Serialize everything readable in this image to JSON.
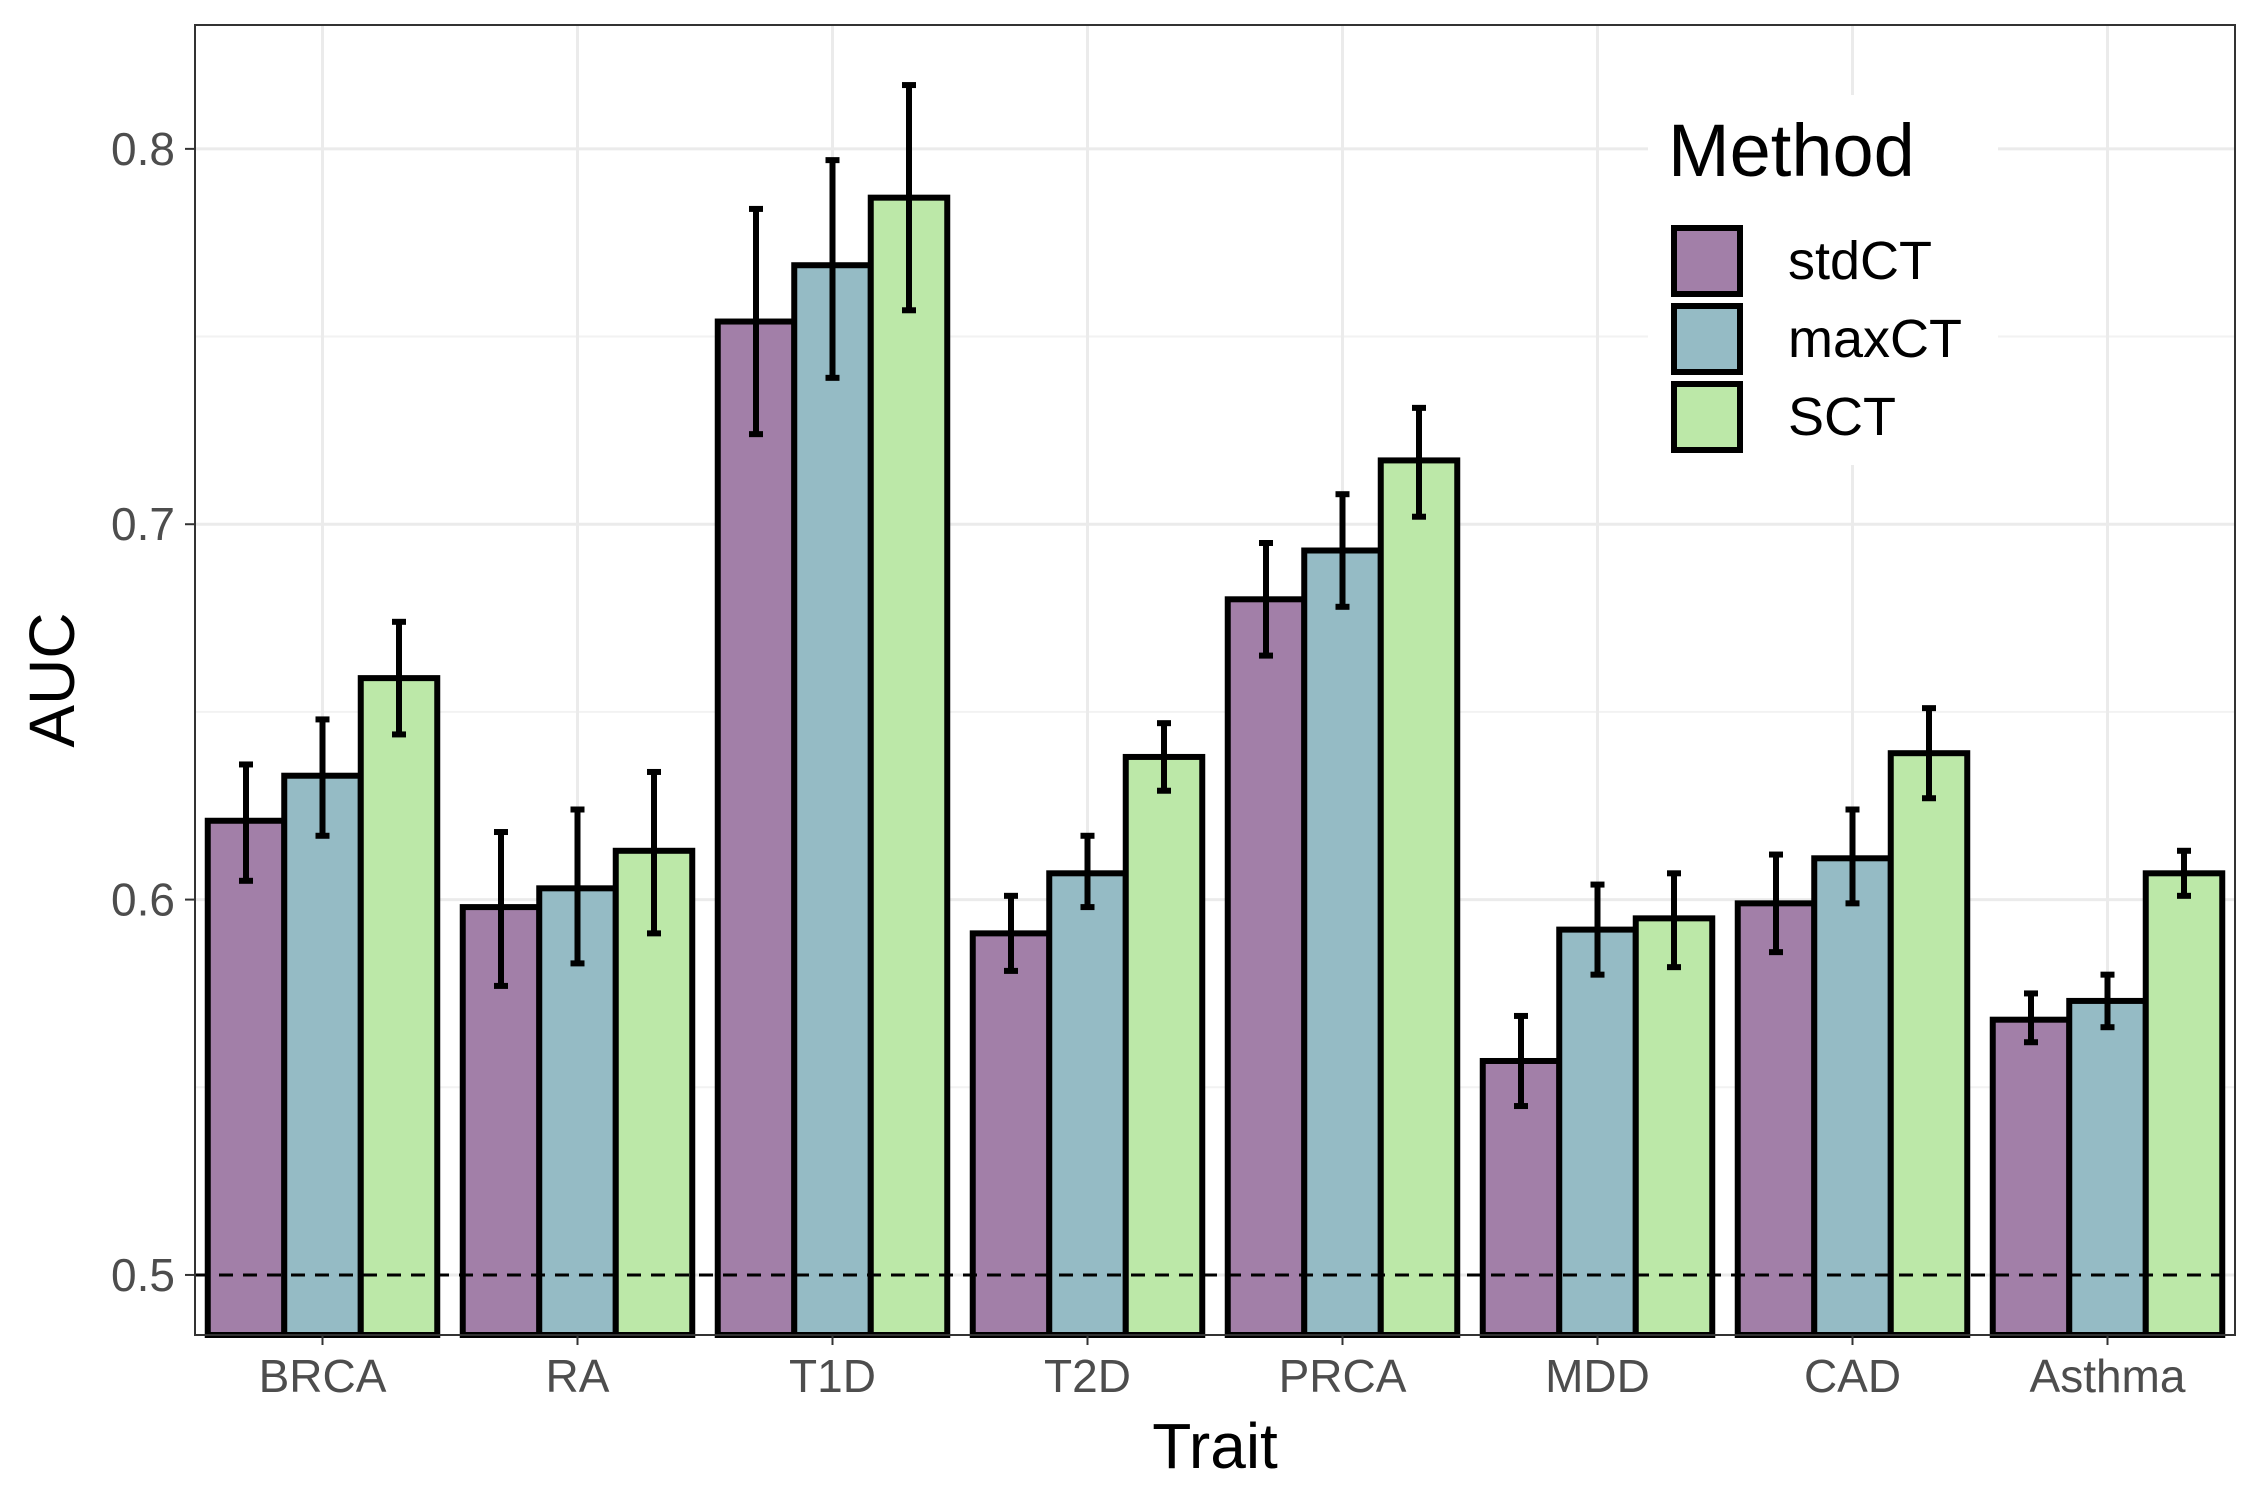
{
  "chart_data": {
    "type": "bar",
    "xlabel": "Trait",
    "ylabel": "AUC",
    "ylim": [
      0.484,
      0.833
    ],
    "yticks": [
      0.5,
      0.6,
      0.7,
      0.8
    ],
    "ytick_labels": [
      "0.5",
      "0.6",
      "0.7",
      "0.8"
    ],
    "grid": true,
    "reference_line": {
      "y": 0.5,
      "style": "dashed"
    },
    "categories": [
      "BRCA",
      "RA",
      "T1D",
      "T2D",
      "PRCA",
      "MDD",
      "CAD",
      "Asthma"
    ],
    "series": [
      {
        "name": "stdCT",
        "color": "#A27FA8",
        "values": [
          0.621,
          0.598,
          0.754,
          0.591,
          0.68,
          0.557,
          0.599,
          0.568
        ],
        "err_low": [
          0.605,
          0.577,
          0.724,
          0.581,
          0.665,
          0.545,
          0.586,
          0.562
        ],
        "err_high": [
          0.636,
          0.618,
          0.784,
          0.601,
          0.695,
          0.569,
          0.612,
          0.575
        ]
      },
      {
        "name": "maxCT",
        "color": "#95BBC5",
        "values": [
          0.633,
          0.603,
          0.769,
          0.607,
          0.693,
          0.592,
          0.611,
          0.573
        ],
        "err_low": [
          0.617,
          0.583,
          0.739,
          0.598,
          0.678,
          0.58,
          0.599,
          0.566
        ],
        "err_high": [
          0.648,
          0.624,
          0.797,
          0.617,
          0.708,
          0.604,
          0.624,
          0.58
        ]
      },
      {
        "name": "SCT",
        "color": "#BCE8A8",
        "values": [
          0.659,
          0.613,
          0.787,
          0.638,
          0.717,
          0.595,
          0.639,
          0.607
        ],
        "err_low": [
          0.644,
          0.591,
          0.757,
          0.629,
          0.702,
          0.582,
          0.627,
          0.601
        ],
        "err_high": [
          0.674,
          0.634,
          0.817,
          0.647,
          0.731,
          0.607,
          0.651,
          0.613
        ]
      }
    ],
    "legend": {
      "title": "Method",
      "position": "top-right-inside"
    }
  }
}
